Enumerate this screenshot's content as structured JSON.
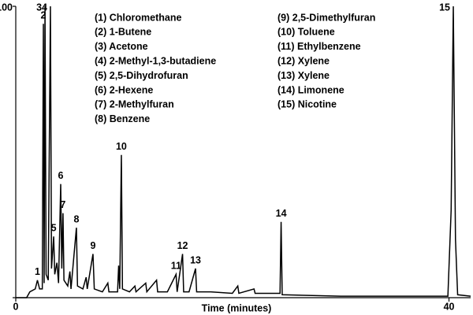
{
  "chart_data": {
    "type": "line",
    "xlabel": "Time (minutes)",
    "xlim": [
      0,
      42
    ],
    "xticks": [
      0,
      40
    ],
    "ylim": [
      0,
      100
    ],
    "yticks": [
      0,
      100
    ],
    "color": "#000000",
    "legend": [
      "(1) Chloromethane",
      "(2) 1-Butene",
      "(3) Acetone",
      "(4) 2-Methyl-1,3-butadiene",
      "(5) 2,5-Dihydrofuran",
      "(6) 2-Hexene",
      "(7) 2-Methylfuran",
      "(8) Benzene",
      "(9) 2,5-Dimethylfuran",
      "(10) Toluene",
      "(11) Ethylbenzene",
      "(12) Xylene",
      "(13) Xylene",
      "(14) Limonene",
      "(15) Nicotine"
    ],
    "series": [
      {
        "x": [
          0,
          1.0,
          1.3,
          1.8,
          2.0,
          2.2,
          2.45,
          2.55,
          2.62,
          2.7,
          2.8,
          3.0,
          3.2,
          3.3,
          3.5,
          3.6,
          3.8,
          3.95,
          4.15,
          4.25,
          4.36,
          4.45,
          4.8,
          5.0,
          5.1,
          5.6,
          5.7,
          6.2,
          6.5,
          6.6,
          7.13,
          7.25,
          8.0,
          8.5,
          8.6,
          9.4,
          9.5,
          9.6,
          9.75,
          9.85,
          10.5,
          11.0,
          11.1,
          12.0,
          12.1,
          13.0,
          13.1,
          14.0,
          14.8,
          14.9,
          15.4,
          15.5,
          16.0,
          16.6,
          16.7,
          18,
          20,
          20.5,
          20.6,
          22,
          22.1,
          24.4,
          24.5,
          24.6,
          30,
          39.9,
          40.2,
          40.4,
          40.6,
          40.8,
          42
        ],
        "y": [
          0,
          0,
          2,
          3,
          6,
          3,
          3,
          94,
          5,
          100,
          8,
          6,
          100,
          10,
          21,
          8,
          12,
          5,
          39,
          10,
          29,
          6,
          4,
          9,
          3,
          24,
          4,
          3,
          7,
          3,
          15,
          3,
          2,
          5,
          2,
          2,
          11,
          3,
          49,
          3,
          2,
          4,
          2,
          5,
          2,
          6,
          2,
          2,
          8,
          2,
          15,
          2,
          2,
          10,
          2,
          2,
          1.5,
          4,
          1.5,
          3,
          1.5,
          1.5,
          26,
          1,
          0.5,
          0.5,
          30,
          100,
          20,
          1,
          0.5
        ]
      }
    ],
    "peaks": [
      {
        "label": "1",
        "x": 2.0,
        "y": 6
      },
      {
        "label": "2",
        "x": 2.55,
        "y": 94
      },
      {
        "label": "3",
        "x": 2.7,
        "y": 100
      },
      {
        "label": "4",
        "x": 3.2,
        "y": 100
      },
      {
        "label": "5",
        "x": 3.5,
        "y": 21
      },
      {
        "label": "6",
        "x": 4.15,
        "y": 39
      },
      {
        "label": "7",
        "x": 4.36,
        "y": 29
      },
      {
        "label": "8",
        "x": 5.6,
        "y": 24
      },
      {
        "label": "9",
        "x": 7.13,
        "y": 15
      },
      {
        "label": "10",
        "x": 9.75,
        "y": 49
      },
      {
        "label": "11",
        "x": 14.8,
        "y": 8
      },
      {
        "label": "12",
        "x": 15.4,
        "y": 15
      },
      {
        "label": "13",
        "x": 16.6,
        "y": 10
      },
      {
        "label": "14",
        "x": 24.5,
        "y": 26
      },
      {
        "label": "15",
        "x": 40.4,
        "y": 100
      }
    ]
  }
}
